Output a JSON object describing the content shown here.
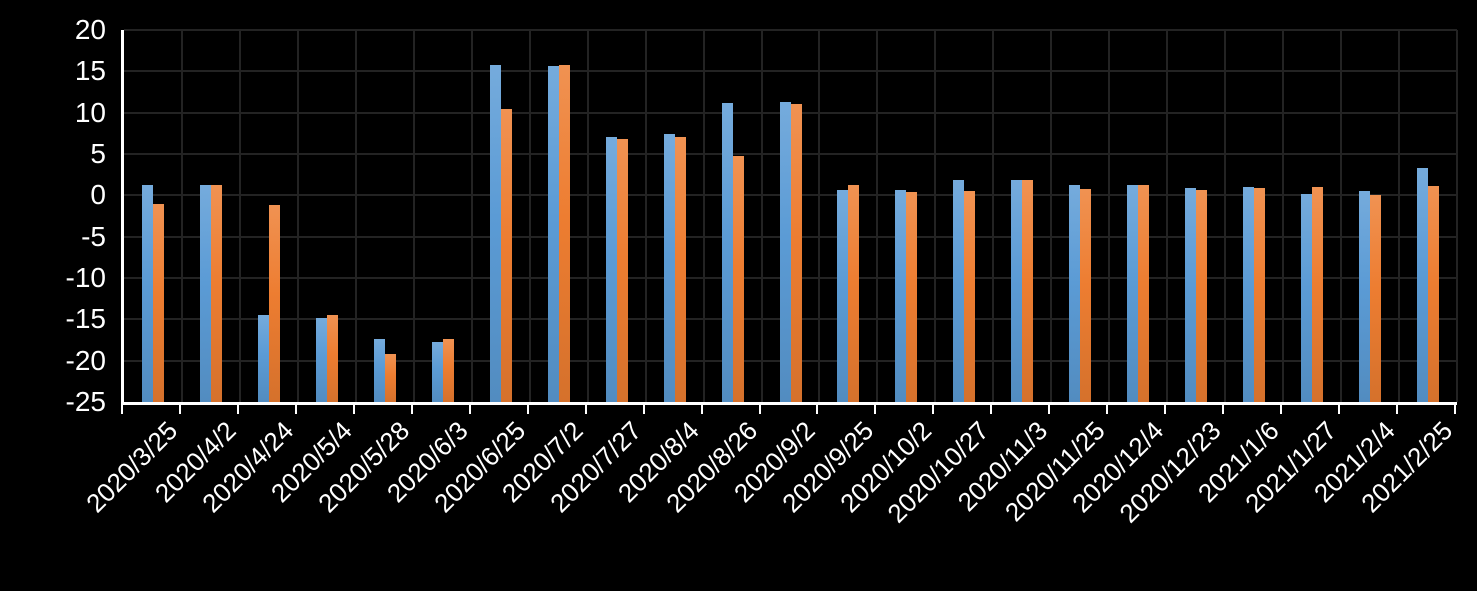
{
  "chart_data": {
    "type": "bar",
    "title": "",
    "xlabel": "",
    "ylabel": "",
    "legend_position": "none",
    "grid": true,
    "background_color": "#000000",
    "gridline_color": "#232323",
    "axis_color": "#ffffff",
    "label_color": "#ffffff",
    "ylim": [
      -25,
      20
    ],
    "bar_base": -25,
    "yticks": [
      "20",
      "15",
      "10",
      "5",
      "0",
      "-5",
      "-10",
      "-15",
      "-20",
      "-25"
    ],
    "categories": [
      "2020/3/25",
      "2020/4/2",
      "2020/4/24",
      "2020/5/4",
      "2020/5/28",
      "2020/6/3",
      "2020/6/25",
      "2020/7/2",
      "2020/7/27",
      "2020/8/4",
      "2020/8/26",
      "2020/9/2",
      "2020/9/25",
      "2020/10/2",
      "2020/10/27",
      "2020/11/3",
      "2020/11/25",
      "2020/12/4",
      "2020/12/23",
      "2021/1/6",
      "2021/1/27",
      "2021/2/4",
      "2021/2/25"
    ],
    "series": [
      {
        "name": "blue",
        "color": "#5B9BD5",
        "values": [
          1.2,
          1.2,
          -14.5,
          -14.8,
          -17.4,
          -17.8,
          15.8,
          15.6,
          7.0,
          7.4,
          11.2,
          11.3,
          0.6,
          0.6,
          1.9,
          1.8,
          1.2,
          1.2,
          0.9,
          1.0,
          0.2,
          0.5,
          3.3
        ]
      },
      {
        "name": "orange",
        "color": "#ED7D31",
        "values": [
          -1.1,
          1.2,
          -1.2,
          -14.5,
          -19.2,
          -17.4,
          10.5,
          15.8,
          6.8,
          7.1,
          4.7,
          11.1,
          1.3,
          0.4,
          0.5,
          1.8,
          0.8,
          1.2,
          0.6,
          0.9,
          1.0,
          0.1,
          1.1
        ]
      }
    ]
  }
}
